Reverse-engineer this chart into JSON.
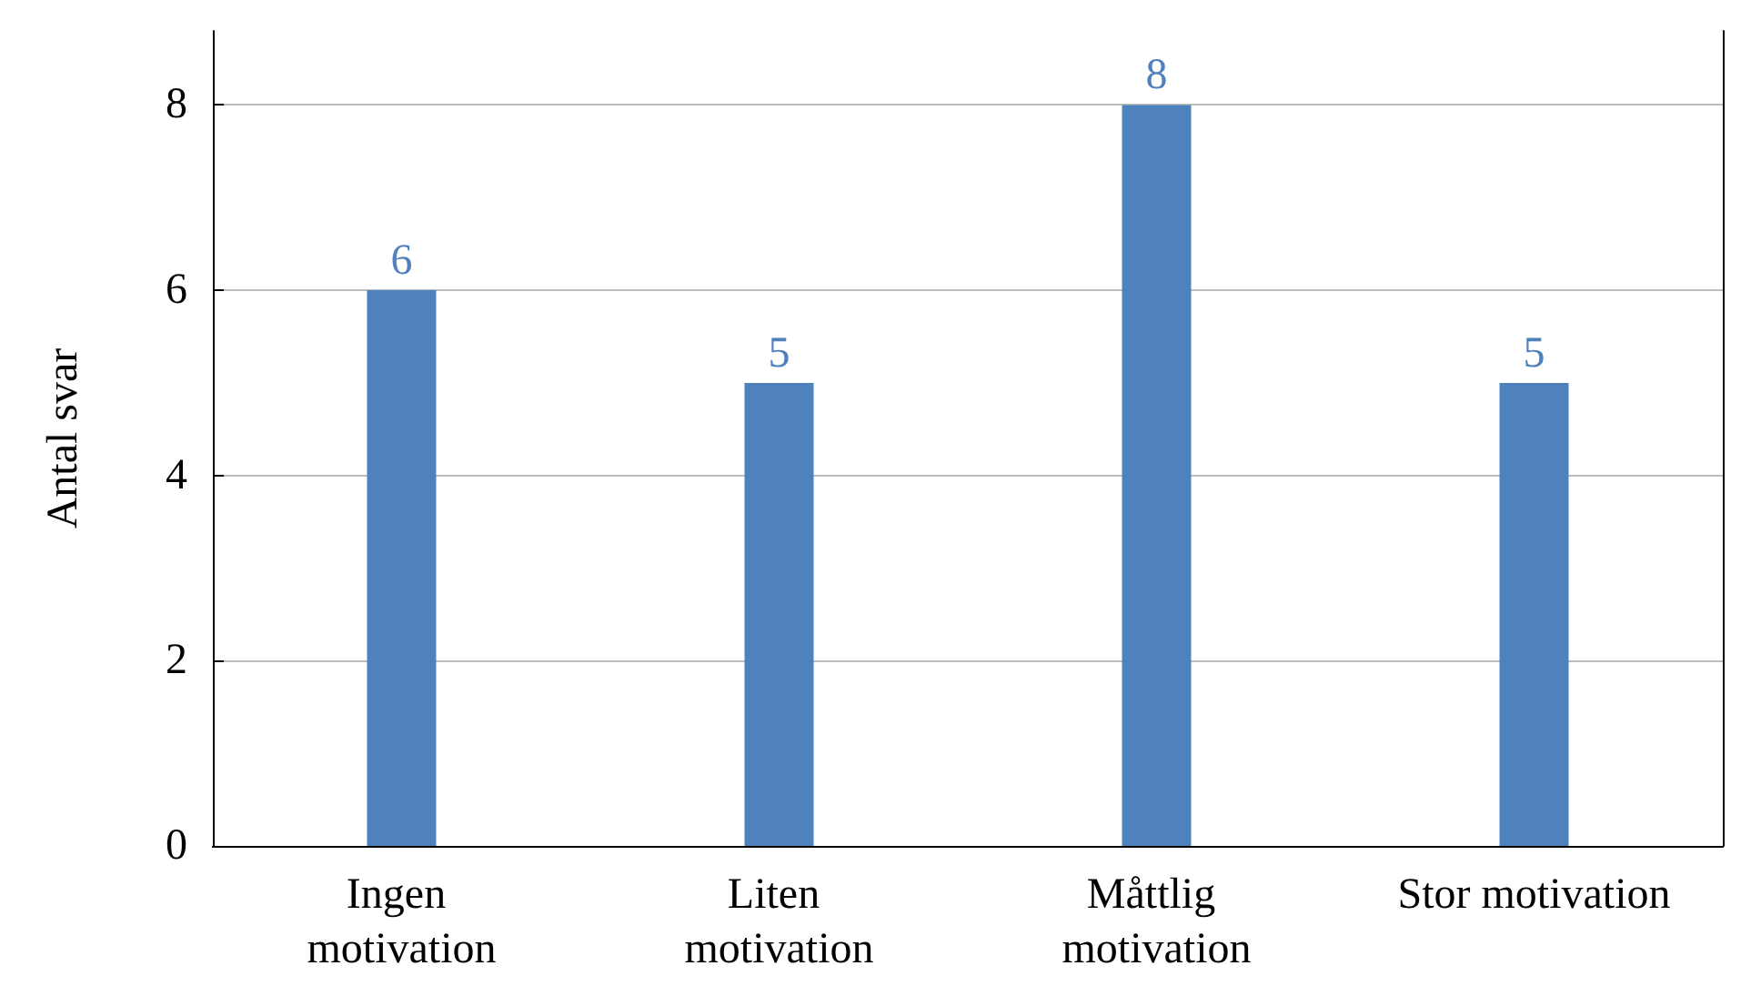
{
  "chart_data": {
    "type": "bar",
    "ylabel": "Antal svar",
    "categories": [
      "Ingen motivation",
      "Liten motivation",
      "Måttlig motivation",
      "Stor motivation"
    ],
    "values": [
      6,
      5,
      8,
      5
    ],
    "color": "#4f81bd",
    "ylim": [
      0,
      8.8
    ],
    "yticks": [
      0,
      2,
      4,
      6,
      8
    ],
    "grid": "y",
    "data_labels": true
  }
}
